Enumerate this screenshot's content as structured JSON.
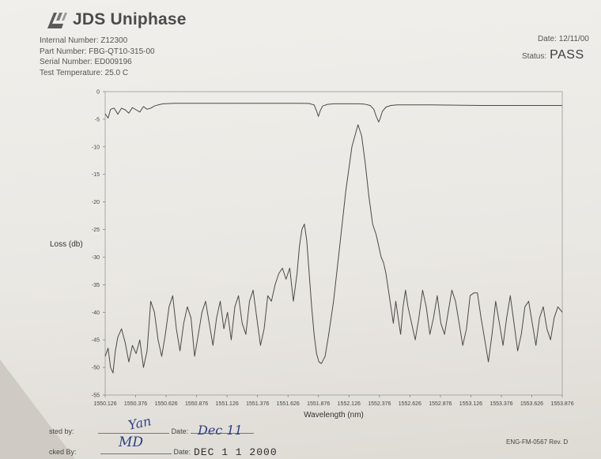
{
  "header": {
    "company": "JDS Uniphase",
    "fields": [
      {
        "label": "Internal Number:",
        "value": "Z12300"
      },
      {
        "label": "Part Number:",
        "value": "FBG-QT10-315-00"
      },
      {
        "label": "Serial Number:",
        "value": "ED009196"
      },
      {
        "label": "Test Temperature:",
        "value": "25.0 C"
      }
    ],
    "date_label": "Date:",
    "date_value": "12/11/00",
    "status_label": "Status:",
    "status_value": "PASS"
  },
  "footer": {
    "tested_by_label": "sted by:",
    "tested_by_date_label": "Date:",
    "tested_by_date_value": "Dec 11",
    "tested_by_signature": "Yan",
    "checked_by_label": "cked By:",
    "checked_by_date_label": "Date:",
    "checked_by_date_value": "DEC 1 1 2000",
    "checked_by_initials": "MD",
    "form_id": "ENG-FM-0567 Rev. D"
  },
  "chart_data": {
    "type": "line",
    "xlabel": "Wavelength (nm)",
    "ylabel": "Loss (db)",
    "xlim": [
      1550.126,
      1553.876
    ],
    "ylim": [
      -55,
      0
    ],
    "xticks": [
      "1550.126",
      "1550.376",
      "1550.626",
      "1550.876",
      "1551.126",
      "1551.376",
      "1551.626",
      "1551.876",
      "1552.126",
      "1552.376",
      "1552.626",
      "1552.876",
      "1553.126",
      "1553.376",
      "1553.626",
      "1553.876"
    ],
    "yticks": [
      "0",
      "-5",
      "-10",
      "-15",
      "-20",
      "-25",
      "-30",
      "-35",
      "-40",
      "-45",
      "-50",
      "-55"
    ],
    "series": [
      {
        "x": [
          1550.126,
          1550.15,
          1550.17,
          1550.2,
          1550.23,
          1550.26,
          1550.29,
          1550.32,
          1550.35,
          1550.38,
          1550.41,
          1550.44,
          1550.47,
          1550.5,
          1550.53,
          1550.56,
          1550.6,
          1550.7,
          1550.9,
          1551.1,
          1551.3,
          1551.5,
          1551.7,
          1551.8,
          1551.84,
          1551.86,
          1551.875,
          1551.89,
          1551.91,
          1551.95,
          1552.0,
          1552.1,
          1552.2,
          1552.25,
          1552.3,
          1552.33,
          1552.35,
          1552.37,
          1552.38,
          1552.4,
          1552.43,
          1552.47,
          1552.52,
          1552.6,
          1552.8,
          1553.2,
          1553.6,
          1553.876
        ],
        "y": [
          -4.0,
          -4.8,
          -3.2,
          -3.0,
          -4.1,
          -3.0,
          -3.3,
          -3.9,
          -2.9,
          -3.3,
          -3.7,
          -2.7,
          -3.2,
          -3.0,
          -2.6,
          -2.4,
          -2.2,
          -2.1,
          -2.1,
          -2.1,
          -2.1,
          -2.1,
          -2.1,
          -2.15,
          -2.4,
          -3.5,
          -4.5,
          -3.5,
          -2.6,
          -2.3,
          -2.2,
          -2.2,
          -2.2,
          -2.25,
          -2.5,
          -3.2,
          -4.5,
          -5.5,
          -5.0,
          -3.6,
          -2.8,
          -2.5,
          -2.4,
          -2.4,
          -2.4,
          -2.5,
          -2.5,
          -2.5
        ]
      },
      {
        "x": [
          1550.126,
          1550.15,
          1550.17,
          1550.19,
          1550.21,
          1550.23,
          1550.26,
          1550.29,
          1550.32,
          1550.35,
          1550.38,
          1550.41,
          1550.44,
          1550.47,
          1550.5,
          1550.53,
          1550.56,
          1550.59,
          1550.62,
          1550.65,
          1550.68,
          1550.71,
          1550.74,
          1550.77,
          1550.8,
          1550.83,
          1550.86,
          1550.89,
          1550.92,
          1550.95,
          1550.98,
          1551.01,
          1551.04,
          1551.07,
          1551.1,
          1551.13,
          1551.16,
          1551.19,
          1551.22,
          1551.25,
          1551.28,
          1551.31,
          1551.34,
          1551.37,
          1551.4,
          1551.43,
          1551.46,
          1551.49,
          1551.52,
          1551.55,
          1551.58,
          1551.61,
          1551.64,
          1551.67,
          1551.7,
          1551.72,
          1551.74,
          1551.76,
          1551.78,
          1551.8,
          1551.82,
          1551.84,
          1551.86,
          1551.88,
          1551.9,
          1551.93,
          1551.96,
          1552.0,
          1552.05,
          1552.1,
          1552.15,
          1552.2,
          1552.23,
          1552.26,
          1552.29,
          1552.32,
          1552.35,
          1552.37,
          1552.39,
          1552.41,
          1552.43,
          1552.45,
          1552.47,
          1552.49,
          1552.51,
          1552.53,
          1552.55,
          1552.57,
          1552.59,
          1552.61,
          1552.64,
          1552.67,
          1552.7,
          1552.73,
          1552.76,
          1552.79,
          1552.82,
          1552.85,
          1552.88,
          1552.91,
          1552.94,
          1552.97,
          1553.0,
          1553.03,
          1553.06,
          1553.09,
          1553.12,
          1553.15,
          1553.18,
          1553.21,
          1553.24,
          1553.27,
          1553.3,
          1553.33,
          1553.36,
          1553.39,
          1553.42,
          1553.45,
          1553.48,
          1553.51,
          1553.54,
          1553.57,
          1553.6,
          1553.63,
          1553.66,
          1553.69,
          1553.72,
          1553.75,
          1553.78,
          1553.81,
          1553.84,
          1553.876
        ],
        "y": [
          -48,
          -46.5,
          -50,
          -51,
          -47,
          -44.5,
          -43,
          -45.5,
          -49,
          -46,
          -47.5,
          -45,
          -50,
          -47,
          -38,
          -40,
          -45,
          -48,
          -44,
          -39,
          -37,
          -43,
          -47,
          -42,
          -39,
          -41,
          -48,
          -44,
          -40,
          -38,
          -42,
          -46,
          -41,
          -38,
          -43,
          -40,
          -45,
          -39,
          -37,
          -42,
          -44,
          -38,
          -36,
          -41,
          -46,
          -43,
          -37,
          -38,
          -35,
          -33,
          -32,
          -34,
          -32,
          -38,
          -33,
          -28,
          -25,
          -24,
          -27,
          -33,
          -39,
          -44,
          -47.5,
          -49,
          -49.3,
          -48,
          -44,
          -38,
          -28,
          -18,
          -10,
          -6,
          -8,
          -13,
          -19,
          -24,
          -26,
          -28,
          -30,
          -31,
          -33,
          -36,
          -39,
          -42,
          -38,
          -41,
          -44,
          -39,
          -36,
          -39,
          -42,
          -45,
          -41,
          -36,
          -39,
          -44,
          -41,
          -37,
          -42,
          -44,
          -40,
          -36,
          -38,
          -42,
          -46,
          -43,
          -37,
          -36.5,
          -36.5,
          -41,
          -45,
          -49,
          -44,
          -38,
          -42,
          -46,
          -41,
          -37,
          -42,
          -47,
          -44,
          -39,
          -38,
          -42,
          -46,
          -41,
          -39,
          -43,
          -45,
          -41,
          -39,
          -40
        ]
      }
    ]
  }
}
